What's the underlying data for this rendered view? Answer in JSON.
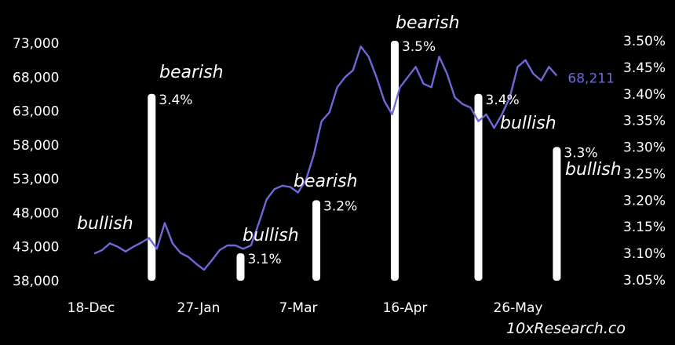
{
  "chart_data": {
    "type": "line+bar",
    "x_ticks": [
      "18-Dec",
      "27-Jan",
      "7-Mar",
      "16-Apr",
      "26-May"
    ],
    "y_left": {
      "ticks": [
        "73,000",
        "68,000",
        "63,000",
        "58,000",
        "53,000",
        "48,000",
        "43,000",
        "38,000"
      ],
      "range": [
        38000,
        73000
      ]
    },
    "y_right": {
      "ticks": [
        "3.50%",
        "3.45%",
        "3.40%",
        "3.35%",
        "3.30%",
        "3.25%",
        "3.20%",
        "3.15%",
        "3.10%",
        "3.05%"
      ],
      "range": [
        3.05,
        3.5
      ]
    },
    "price_series": {
      "color": "#6e68d9",
      "x_days": [
        0,
        3,
        6,
        9,
        12,
        15,
        18,
        21,
        24,
        27,
        30,
        33,
        36,
        39,
        42,
        45,
        48,
        51,
        54,
        57,
        60,
        63,
        66,
        69,
        72,
        75,
        78,
        81,
        84,
        87,
        90,
        93,
        96,
        99,
        102,
        105,
        108,
        111,
        114,
        117,
        120,
        123,
        126,
        129,
        132,
        135,
        138,
        141,
        144,
        147,
        150,
        153,
        156,
        159,
        162,
        165,
        168,
        171,
        174,
        177
      ],
      "values": [
        42000,
        42500,
        43500,
        43000,
        42300,
        43000,
        43600,
        44300,
        42700,
        46500,
        43500,
        42100,
        41500,
        40500,
        39600,
        41000,
        42500,
        43200,
        43200,
        42700,
        43200,
        46500,
        50000,
        51500,
        52000,
        51800,
        51000,
        52800,
        56500,
        61500,
        62800,
        66500,
        68000,
        69000,
        72500,
        71000,
        68000,
        64500,
        62500,
        66500,
        68000,
        69500,
        67000,
        66500,
        71000,
        68500,
        65000,
        64000,
        63500,
        61500,
        62500,
        60500,
        62500,
        65000,
        69500,
        70500,
        68500,
        67500,
        69500,
        68211
      ],
      "last_label": "68,211"
    },
    "bars": [
      {
        "x_day": 22,
        "value": 3.4,
        "label": "3.4%"
      },
      {
        "x_day": 56,
        "value": 3.1,
        "label": "3.1%"
      },
      {
        "x_day": 85,
        "value": 3.2,
        "label": "3.2%"
      },
      {
        "x_day": 115,
        "value": 3.5,
        "label": "3.5%"
      },
      {
        "x_day": 147,
        "value": 3.4,
        "label": "3.4%"
      },
      {
        "x_day": 177,
        "value": 3.3,
        "label": "3.3%"
      }
    ],
    "annotations": [
      {
        "text": "bullish"
      },
      {
        "text": "bearish"
      },
      {
        "text": "bullish"
      },
      {
        "text": "bearish"
      },
      {
        "text": "bearish"
      },
      {
        "text": "bullish"
      },
      {
        "text": "bullish"
      }
    ]
  },
  "watermark": "10xResearch.co"
}
